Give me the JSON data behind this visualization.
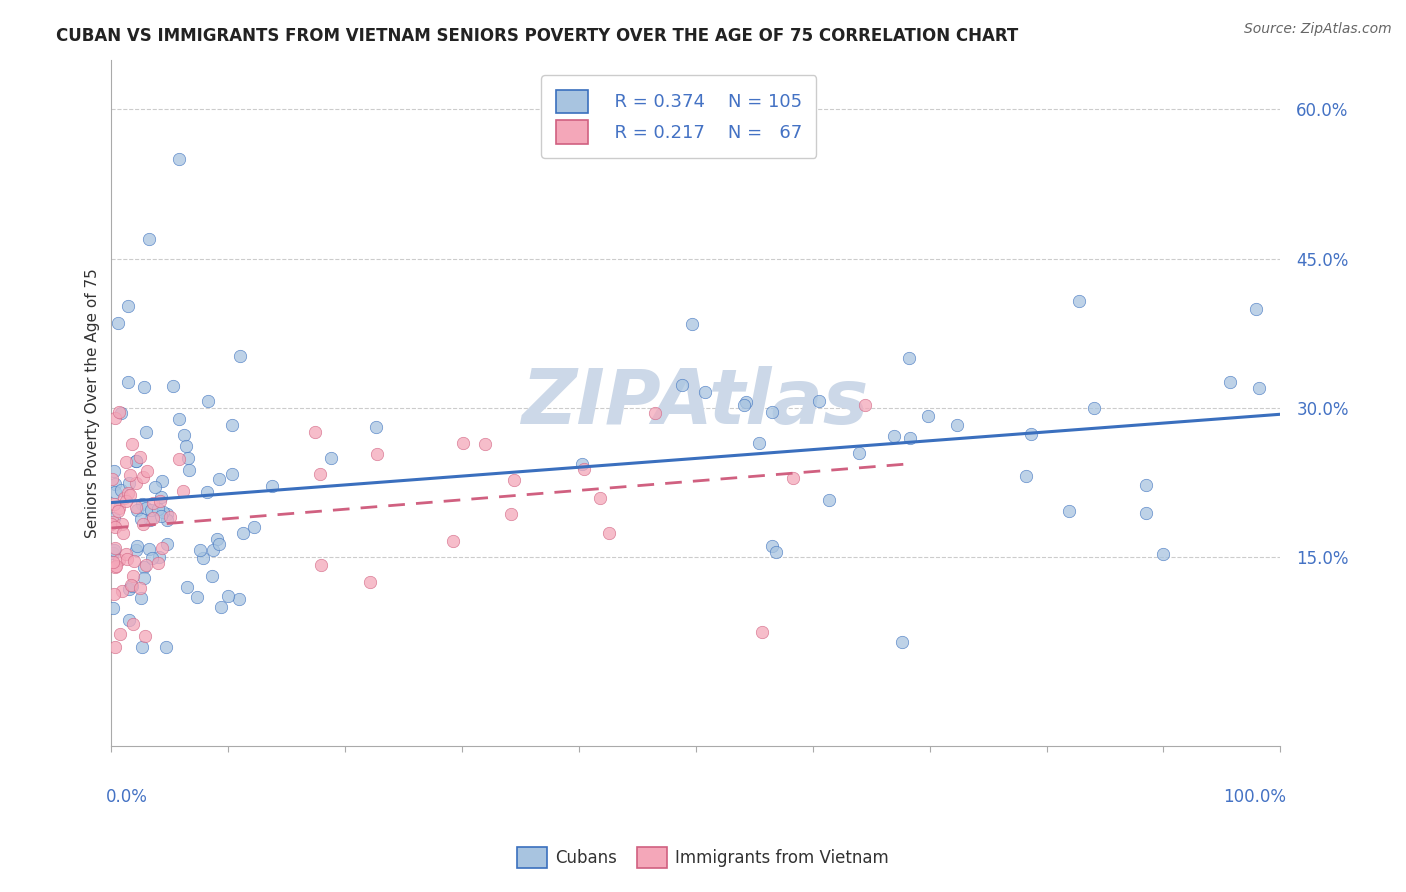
{
  "title": "CUBAN VS IMMIGRANTS FROM VIETNAM SENIORS POVERTY OVER THE AGE OF 75 CORRELATION CHART",
  "source_text": "Source: ZipAtlas.com",
  "ylabel": "Seniors Poverty Over the Age of 75",
  "xlim": [
    0.0,
    1.0
  ],
  "ylim": [
    -0.04,
    0.65
  ],
  "yticks": [
    0.15,
    0.3,
    0.45,
    0.6
  ],
  "ytick_labels": [
    "15.0%",
    "30.0%",
    "45.0%",
    "60.0%"
  ],
  "xticks": [
    0.0,
    0.1,
    0.2,
    0.3,
    0.4,
    0.5,
    0.6,
    0.7,
    0.8,
    0.9,
    1.0
  ],
  "color_cubans": "#a8c4e0",
  "color_vietnam": "#f4a7b9",
  "line_color_cubans": "#3a6fbe",
  "line_color_vietnam": "#d06080",
  "background_color": "#ffffff",
  "watermark_color": "#ccd8e8",
  "title_fontsize": 12,
  "source_fontsize": 10,
  "legend_fontsize": 13,
  "axis_label_fontsize": 11,
  "tick_fontsize": 12
}
